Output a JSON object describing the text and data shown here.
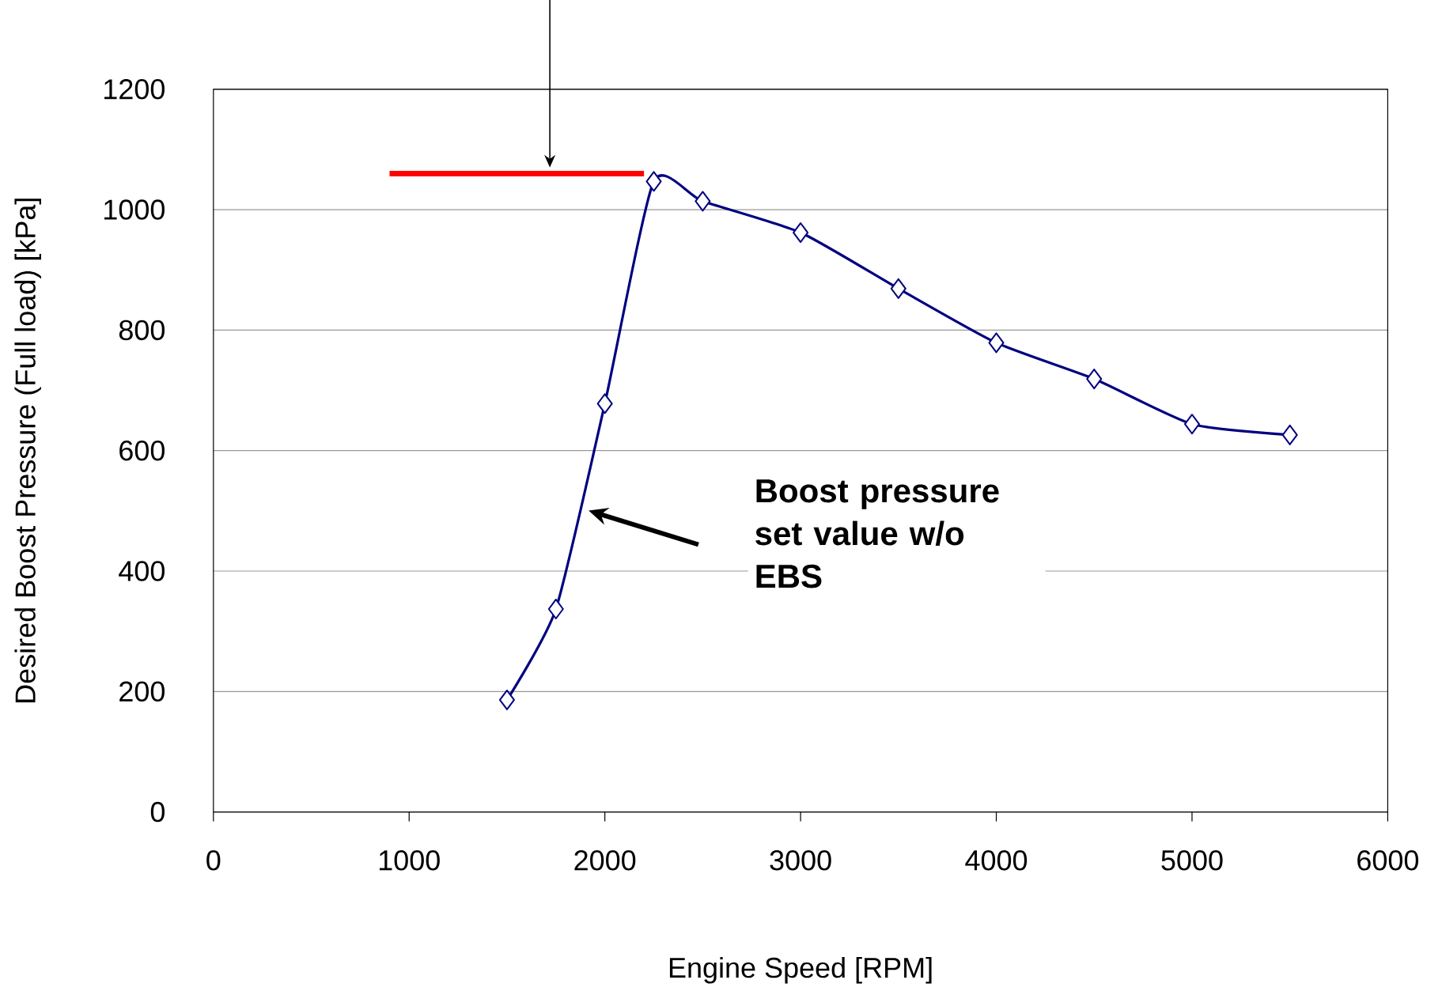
{
  "chart_data": {
    "type": "line",
    "xlabel": "Engine Speed [RPM]",
    "ylabel": "Desired Boost Pressure (Full load) [kPa]",
    "xlim": [
      0,
      6000
    ],
    "xticks": [
      0,
      1000,
      2000,
      3000,
      4000,
      5000,
      6000
    ],
    "ylim": [
      0,
      1200
    ],
    "yticks": [
      0,
      200,
      400,
      600,
      800,
      1000,
      1200
    ],
    "grid": "y",
    "marker": "diamond",
    "line_style": "solid",
    "series": [
      {
        "color": "#000080",
        "x": [
          1500,
          1750,
          2000,
          2250,
          2500,
          3000,
          3500,
          4000,
          4500,
          5000,
          5500
        ],
        "values": [
          186,
          337,
          678,
          1047,
          1014,
          962,
          869,
          779,
          719,
          644,
          626
        ]
      },
      {
        "color": "#ff0000",
        "marker": "none",
        "x": [
          900,
          2200
        ],
        "values": [
          1060,
          1060
        ]
      }
    ],
    "annotations": [
      "**Boost pressure set value w/o EBS**"
    ]
  }
}
